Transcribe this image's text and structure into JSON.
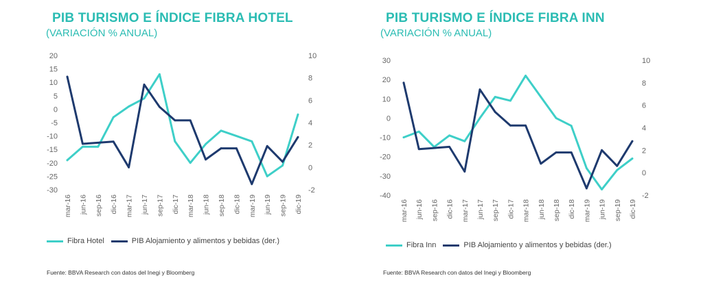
{
  "chart_data": [
    {
      "type": "line",
      "title": "PIB TURISMO E ÍNDICE FIBRA HOTEL",
      "subtitle": "(VARIACIÓN  % ANUAL)",
      "categories": [
        "mar-16",
        "jun-16",
        "sep-16",
        "dic-16",
        "mar-17",
        "jun-17",
        "sep-17",
        "dic-17",
        "mar-18",
        "jun-18",
        "sep-18",
        "dic-18",
        "mar-19",
        "jun-19",
        "sep-19",
        "dic-19"
      ],
      "series": [
        {
          "name": "Fibra Hotel",
          "axis": "left",
          "color": "#3ecfc8",
          "values": [
            -19,
            -14,
            -14,
            -3,
            1,
            4,
            13,
            -12,
            -20,
            -13,
            -8,
            -10,
            -12,
            -25,
            -21,
            -2
          ]
        },
        {
          "name": "PIB Alojamiento y alimentos y bebidas (der.)",
          "axis": "right",
          "color": "#1e3a6e",
          "values": [
            8.1,
            2.1,
            2.2,
            2.3,
            0,
            7.4,
            5.4,
            4.2,
            4.2,
            0.7,
            1.7,
            1.7,
            -1.5,
            1.9,
            0.5,
            2.7
          ]
        }
      ],
      "ylim_left": [
        -30,
        20
      ],
      "yticks_left": [
        "20",
        "15",
        "10",
        "5",
        "0",
        "-5",
        "-10",
        "-15",
        "-20",
        "-25",
        "-30"
      ],
      "ylim_right": [
        -2,
        10
      ],
      "yticks_right": [
        "10",
        "8",
        "6",
        "4",
        "2",
        "0",
        "-2"
      ],
      "legend": "bottom",
      "source": "Fuente:  BBVA Research con datos del Inegi y Bloomberg"
    },
    {
      "type": "line",
      "title": "PIB TURISMO E ÍNDICE FIBRA INN",
      "subtitle": "(VARIACIÓN  % ANUAL)",
      "categories": [
        "mar-16",
        "jun-16",
        "sep-16",
        "dic-16",
        "mar-17",
        "jun-17",
        "sep-17",
        "dic-17",
        "mar-18",
        "jun-18",
        "sep-18",
        "dic-18",
        "mar-19",
        "jun-19",
        "sep-19",
        "dic-19"
      ],
      "series": [
        {
          "name": "Fibra Inn",
          "axis": "left",
          "color": "#3ecfc8",
          "values": [
            -10,
            -7,
            -15,
            -9,
            -12,
            0,
            11,
            9,
            22,
            11,
            0,
            -4,
            -26,
            -37,
            -27,
            -21
          ]
        },
        {
          "name": "PIB Alojamiento y alimentos y bebidas (der.)",
          "axis": "right",
          "color": "#1e3a6e",
          "values": [
            8.0,
            2.1,
            2.2,
            2.3,
            0.1,
            7.4,
            5.4,
            4.2,
            4.2,
            0.8,
            1.8,
            1.8,
            -1.4,
            2.0,
            0.6,
            2.8
          ]
        }
      ],
      "ylim_left": [
        -40,
        30
      ],
      "yticks_left": [
        "30",
        "20",
        "10",
        "0",
        "-10",
        "-20",
        "-30",
        "-40"
      ],
      "ylim_right": [
        -2,
        10
      ],
      "yticks_right": [
        "10",
        "8",
        "6",
        "4",
        "2",
        "0",
        "-2"
      ],
      "legend": "bottom",
      "source": "Fuente:  BBVA Research con datos del Inegi y Bloomberg"
    }
  ]
}
